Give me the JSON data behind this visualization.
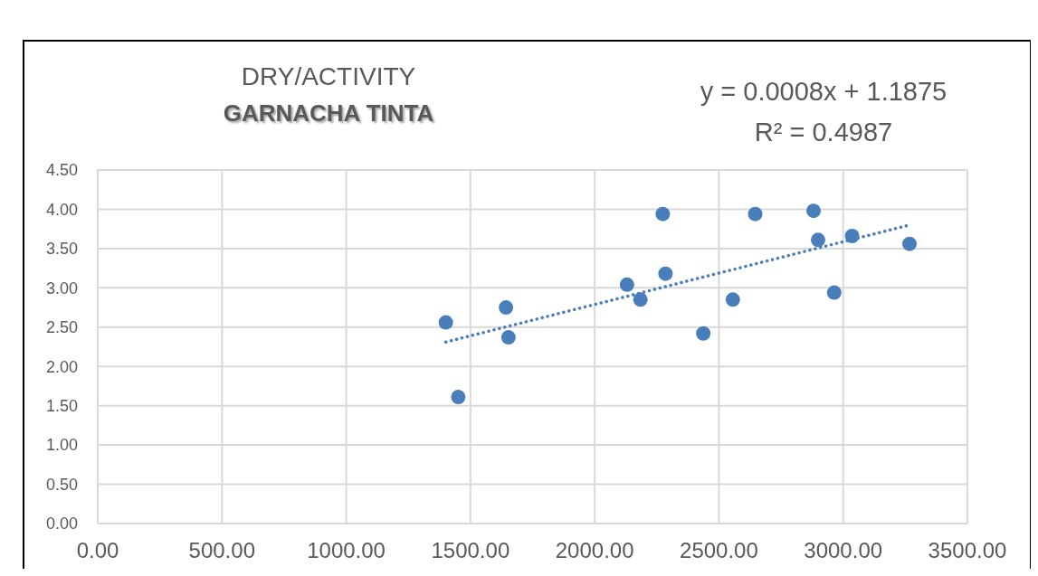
{
  "chart_data": {
    "type": "scatter",
    "title": "DRY/ACTIVITY",
    "subtitle": "GARNACHA TINTA",
    "annotations": [
      "y = 0.0008x + 1.1875",
      "R² = 0.4987"
    ],
    "x": [
      1401,
      1451,
      1643,
      1653,
      2130,
      2184,
      2274,
      2285,
      2437,
      2556,
      2646,
      2881,
      2899,
      2964,
      3036,
      3267
    ],
    "series": [
      {
        "color": "#4a7ebb",
        "marker": "circle",
        "values": [
          2.56,
          1.61,
          2.75,
          2.37,
          3.04,
          2.85,
          3.94,
          3.18,
          2.42,
          2.85,
          3.94,
          3.98,
          3.61,
          2.94,
          3.66,
          3.56
        ]
      },
      {
        "type": "line",
        "color": "#4a7ebb",
        "line_style": "dotted",
        "x": [
          1401,
          3267
        ],
        "values": [
          2.31,
          3.8
        ]
      }
    ],
    "xlim": [
      0,
      3500
    ],
    "ylim": [
      0,
      4.5
    ],
    "xticks": [
      {
        "value": 0,
        "label": "0.00"
      },
      {
        "value": 500,
        "label": "500.00"
      },
      {
        "value": 1000,
        "label": "1000.00"
      },
      {
        "value": 1500,
        "label": "1500.00"
      },
      {
        "value": 2000,
        "label": "2000.00"
      },
      {
        "value": 2500,
        "label": "2500.00"
      },
      {
        "value": 3000,
        "label": "3000.00"
      },
      {
        "value": 3500,
        "label": "3500.00"
      }
    ],
    "yticks": [
      {
        "value": 0,
        "label": "0.00"
      },
      {
        "value": 0.5,
        "label": "0.50"
      },
      {
        "value": 1,
        "label": "1.00"
      },
      {
        "value": 1.5,
        "label": "1.50"
      },
      {
        "value": 2,
        "label": "2.00"
      },
      {
        "value": 2.5,
        "label": "2.50"
      },
      {
        "value": 3,
        "label": "3.00"
      },
      {
        "value": 3.5,
        "label": "3.50"
      },
      {
        "value": 4,
        "label": "4.00"
      },
      {
        "value": 4.5,
        "label": "4.50"
      }
    ],
    "grid": true
  }
}
